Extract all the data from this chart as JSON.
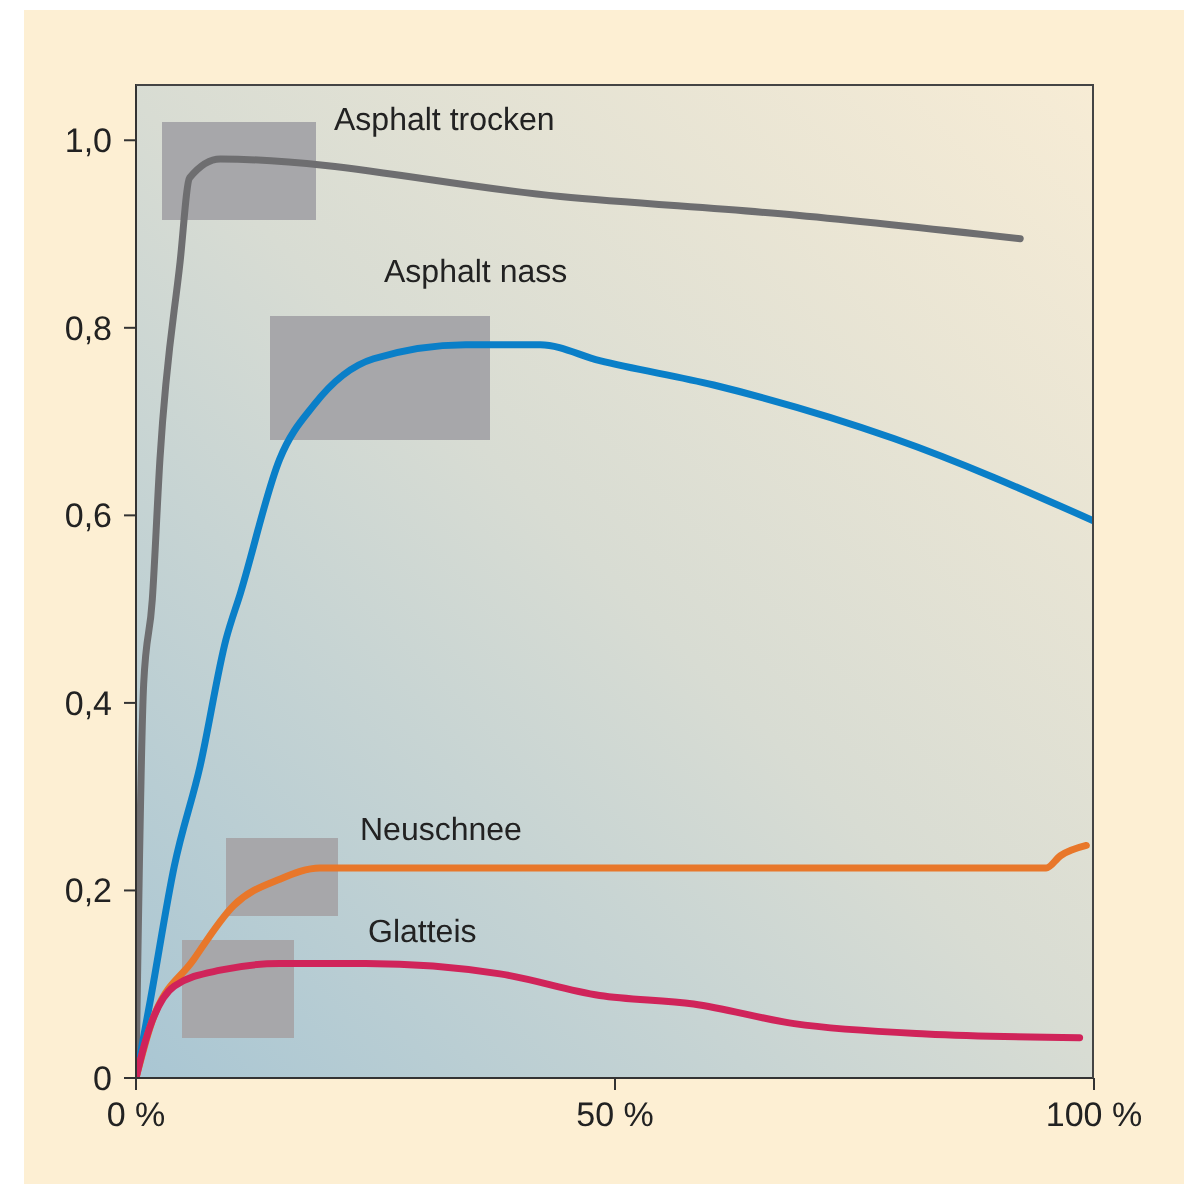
{
  "chart_data": {
    "type": "line",
    "xlim": [
      0,
      100
    ],
    "ylim": [
      0,
      1.06
    ],
    "xticks": [
      {
        "value": 0,
        "label": "0 %"
      },
      {
        "value": 50,
        "label": "50 %"
      },
      {
        "value": 100,
        "label": "100 %"
      }
    ],
    "yticks": [
      0,
      {
        "value": 0.2,
        "label": "0,2"
      },
      {
        "value": 0.4,
        "label": "0,4"
      },
      {
        "value": 0.6,
        "label": "0,6"
      },
      {
        "value": 0.8,
        "label": "0,8"
      },
      {
        "value": 1,
        "label": "1,0"
      }
    ],
    "grid": false,
    "legend": false,
    "series": [
      {
        "name": "Asphalt trocken",
        "color": "#6e6e70",
        "x": [
          0,
          0.8,
          1.7,
          2.5,
          4.6,
          5.6,
          8.8,
          44.3,
          69,
          92.3
        ],
        "values": [
          0,
          0.42,
          0.51,
          0.66,
          0.87,
          0.96,
          0.98,
          0.94,
          0.92,
          0.895
        ]
      },
      {
        "name": "Asphalt nass",
        "color": "#0a7fc8",
        "x": [
          0,
          1.5,
          4,
          6.7,
          9.4,
          10.9,
          15,
          18.6,
          24.8,
          34.4,
          42.2,
          48.4,
          60.3,
          79.1,
          100
        ],
        "values": [
          0,
          0.083,
          0.226,
          0.333,
          0.468,
          0.517,
          0.66,
          0.718,
          0.767,
          0.782,
          0.782,
          0.765,
          0.739,
          0.682,
          0.594
        ]
      },
      {
        "name": "Neuschnee",
        "color": "#e8772a",
        "x": [
          0,
          1.5,
          6,
          10.2,
          15,
          19.2,
          50,
          95,
          96.5,
          99.2
        ],
        "values": [
          0,
          0.055,
          0.126,
          0.184,
          0.212,
          0.224,
          0.224,
          0.224,
          0.237,
          0.248
        ]
      },
      {
        "name": "Glatteis",
        "color": "#d0245a",
        "x": [
          0,
          1,
          4,
          8.8,
          15,
          24,
          38,
          48.4,
          58.2,
          68.7,
          82.5,
          98.5
        ],
        "values": [
          0,
          0.04,
          0.098,
          0.115,
          0.122,
          0.122,
          0.111,
          0.088,
          0.079,
          0.058,
          0.047,
          0.043
        ]
      }
    ]
  }
}
